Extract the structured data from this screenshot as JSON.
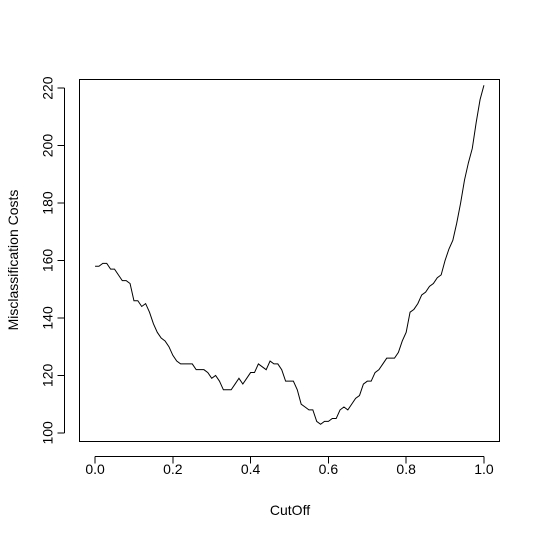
{
  "chart_data": {
    "type": "line",
    "title": "",
    "xlabel": "CutOff",
    "ylabel": "Misclassification Costs",
    "xlim": [
      -0.04,
      1.04
    ],
    "ylim": [
      97,
      223
    ],
    "xticks": [
      0.0,
      0.2,
      0.4,
      0.6,
      0.8,
      1.0
    ],
    "xtick_labels": [
      "0.0",
      "0.2",
      "0.4",
      "0.6",
      "0.8",
      "1.0"
    ],
    "yticks": [
      100,
      120,
      140,
      160,
      180,
      200,
      220
    ],
    "ytick_labels": [
      "100",
      "120",
      "140",
      "160",
      "180",
      "200",
      "220"
    ],
    "grid": false,
    "legend": "none",
    "line_color": "#000000",
    "series": [
      {
        "x": [
          0.0,
          0.01,
          0.02,
          0.03,
          0.04,
          0.05,
          0.06,
          0.07,
          0.08,
          0.09,
          0.1,
          0.11,
          0.12,
          0.13,
          0.14,
          0.15,
          0.16,
          0.17,
          0.18,
          0.19,
          0.2,
          0.21,
          0.22,
          0.23,
          0.24,
          0.25,
          0.26,
          0.27,
          0.28,
          0.29,
          0.3,
          0.31,
          0.32,
          0.33,
          0.34,
          0.35,
          0.36,
          0.37,
          0.38,
          0.39,
          0.4,
          0.41,
          0.42,
          0.43,
          0.44,
          0.45,
          0.46,
          0.47,
          0.48,
          0.49,
          0.5,
          0.51,
          0.52,
          0.53,
          0.54,
          0.55,
          0.56,
          0.57,
          0.58,
          0.59,
          0.6,
          0.61,
          0.62,
          0.63,
          0.64,
          0.65,
          0.66,
          0.67,
          0.68,
          0.69,
          0.7,
          0.71,
          0.72,
          0.73,
          0.74,
          0.75,
          0.76,
          0.77,
          0.78,
          0.79,
          0.8,
          0.81,
          0.82,
          0.83,
          0.84,
          0.85,
          0.86,
          0.87,
          0.88,
          0.89,
          0.9,
          0.91,
          0.92,
          0.93,
          0.94,
          0.95,
          0.96,
          0.97,
          0.98,
          0.99,
          1.0
        ],
        "y": [
          158,
          158,
          159,
          159,
          157,
          157,
          155,
          153,
          153,
          152,
          146,
          146,
          144,
          145,
          142,
          138,
          135,
          133,
          132,
          130,
          127,
          125,
          124,
          124,
          124,
          124,
          122,
          122,
          122,
          121,
          119,
          120,
          118,
          115,
          115,
          115,
          117,
          119,
          117,
          119,
          121,
          121,
          124,
          123,
          122,
          125,
          124,
          124,
          122,
          118,
          118,
          118,
          115,
          110,
          109,
          108,
          108,
          104,
          103,
          104,
          104,
          105,
          105,
          108,
          109,
          108,
          110,
          112,
          113,
          117,
          118,
          118,
          121,
          122,
          124,
          126,
          126,
          126,
          128,
          132,
          135,
          142,
          143,
          145,
          148,
          149,
          151,
          152,
          154,
          155,
          160,
          164,
          167,
          173,
          180,
          188,
          194,
          199,
          208,
          216,
          221
        ]
      }
    ]
  }
}
